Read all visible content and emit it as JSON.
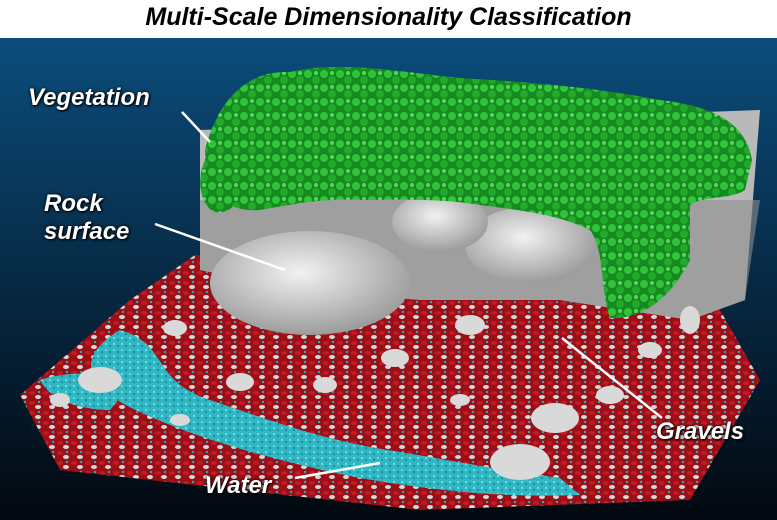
{
  "title": "Multi-Scale Dimensionality Classification",
  "labels": {
    "vegetation": "Vegetation",
    "rock_line1": "Rock",
    "rock_line2": "surface",
    "gravels": "Gravels",
    "water": "Water"
  },
  "colors": {
    "background_top": "#0a4a78",
    "background_bottom": "#020a14",
    "vegetation": "#1fa82a",
    "rock": "#cfcfcf",
    "gravel": "#b3121c",
    "water": "#3cc8d0"
  }
}
